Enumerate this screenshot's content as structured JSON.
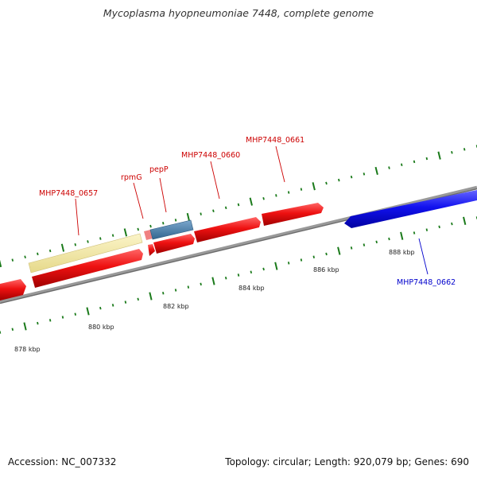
{
  "header": {
    "title": "Mycoplasma hyopneumoniae 7448, complete genome"
  },
  "footer": {
    "accession": "Accession: NC_007332",
    "summary": "Topology: circular; Length: 920,079 bp; Genes: 690"
  },
  "scale": {
    "labels": [
      "878 kbp",
      "880 kbp",
      "882 kbp",
      "884 kbp",
      "886 kbp",
      "888 kbp"
    ]
  },
  "genes": {
    "labels": [
      {
        "text": "MHP7448_0657",
        "color": "#cc0000"
      },
      {
        "text": "rpmG",
        "color": "#cc0000"
      },
      {
        "text": "pepP",
        "color": "#cc0000"
      },
      {
        "text": "MHP7448_0660",
        "color": "#cc0000"
      },
      {
        "text": "MHP7448_0661",
        "color": "#cc0000"
      },
      {
        "text": "MHP7448_0662",
        "color": "#0000cc"
      }
    ]
  },
  "colors": {
    "cds_forward": "#ee1111",
    "cds_reverse": "#1111ee",
    "trna": "#f0e6a0",
    "pepP_feature": "#4a7fb0",
    "backbone": "#888888",
    "tick": "#1a7a1a"
  }
}
